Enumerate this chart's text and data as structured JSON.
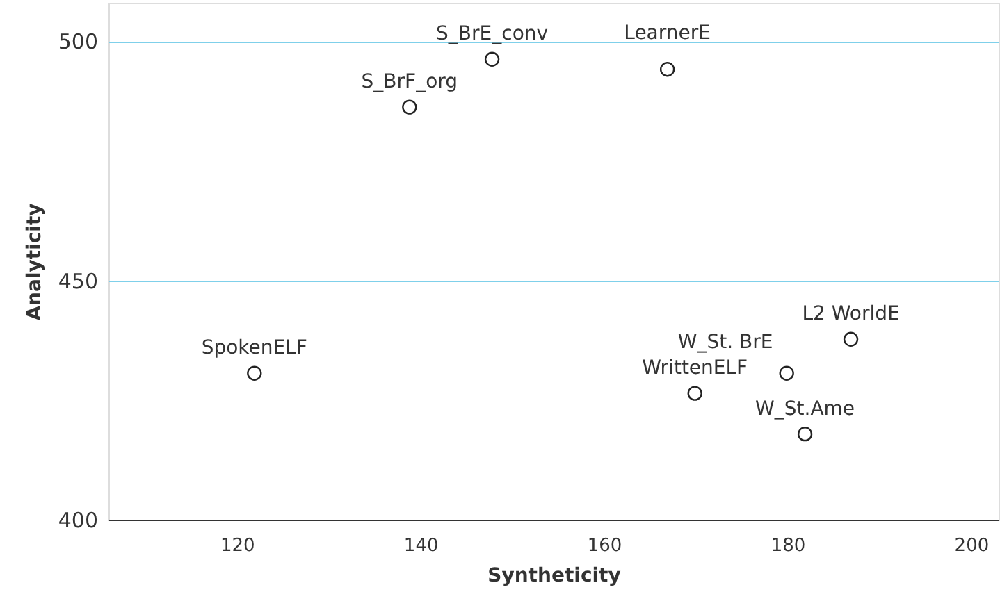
{
  "chart_data": {
    "type": "scatter",
    "xlabel": "Syntheticity",
    "ylabel": "Analyticity",
    "x": [
      121.9,
      138.8,
      147.8,
      166.9,
      169.9,
      179.9,
      186.9,
      181.9
    ],
    "values": [
      430.6,
      486.2,
      496.2,
      494.1,
      426.4,
      430.6,
      437.7,
      417.9
    ],
    "color": "#222222",
    "marker": "circle",
    "xlim": [
      106,
      203
    ],
    "xticks": [
      120,
      140,
      160,
      180,
      200
    ],
    "ylim": [
      400,
      508
    ],
    "yticks": [
      400,
      450,
      500
    ],
    "grid": "y",
    "annotations": [
      {
        "text": "SpokenELF",
        "x": 121.9,
        "y": 430.6
      },
      {
        "text": "S_BrF_org",
        "x": 138.8,
        "y": 486.2
      },
      {
        "text": "S_BrE_conv",
        "x": 147.8,
        "y": 496.2
      },
      {
        "text": "LearnerE",
        "x": 166.9,
        "y": 494.1
      },
      {
        "text": "WrittenELF",
        "x": 169.9,
        "y": 426.4
      },
      {
        "text": "W_St. BrE",
        "x": 179.9,
        "y": 430.6
      },
      {
        "text": "L2 WorldE",
        "x": 186.9,
        "y": 437.7
      },
      {
        "text": "W_St.Ame",
        "x": 181.9,
        "y": 417.9
      }
    ]
  }
}
